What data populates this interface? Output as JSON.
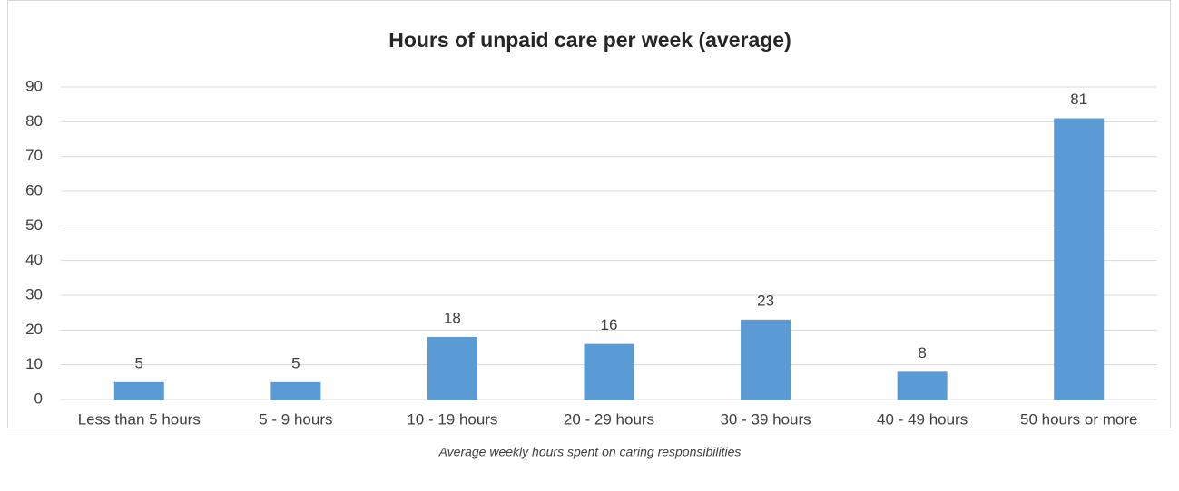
{
  "chart_data": {
    "type": "bar",
    "title": "Hours of unpaid care per week (average)",
    "categories": [
      "Less than 5 hours",
      "5 - 9 hours",
      "10 - 19 hours",
      "20 - 29 hours",
      "30 - 39 hours",
      "40 - 49 hours",
      "50 hours or more"
    ],
    "values": [
      5,
      5,
      18,
      16,
      23,
      8,
      81
    ],
    "color": "#5b9bd5",
    "ylim": [
      0,
      90
    ],
    "yticks": [
      0,
      10,
      20,
      30,
      40,
      50,
      60,
      70,
      80,
      90
    ],
    "grid": true,
    "caption": "Average weekly hours spent on caring responsibilities"
  }
}
